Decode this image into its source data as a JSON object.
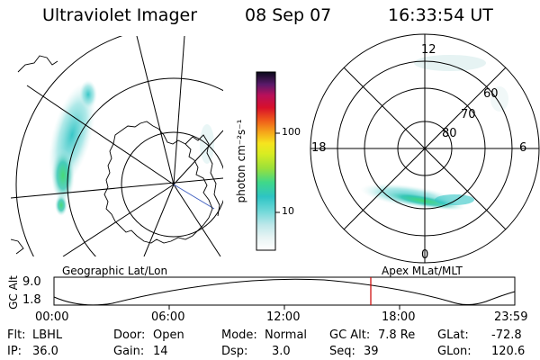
{
  "header": {
    "instrument": "Ultraviolet Imager",
    "date": "08 Sep 07",
    "time": "16:33:54 UT"
  },
  "geo_panel": {
    "label": "Geographic Lat/Lon"
  },
  "mag_panel": {
    "label": "Apex MLat/MLT",
    "mlt_labels": {
      "top": "12",
      "left": "18",
      "right": "6",
      "bottom": "0"
    },
    "lat_labels": [
      "60",
      "70",
      "80"
    ]
  },
  "colorbar": {
    "unit": "photon cm⁻²s⁻¹",
    "ticks": [
      "100",
      "10"
    ],
    "scale": "log",
    "colors": [
      "#eef6f6",
      "#bfe8ea",
      "#6fd8d8",
      "#2ec4c4",
      "#3fd88a",
      "#9be03a",
      "#d8ec22",
      "#f6e41e",
      "#f6a81a",
      "#ef5a1a",
      "#d8102a",
      "#b8105a",
      "#6a1a7a",
      "#2a1040",
      "#0a0a1a"
    ]
  },
  "altitude_plot": {
    "ylabel": "GC Alt",
    "yticks": [
      "9.0",
      "1.8"
    ],
    "xticks": [
      "00:00",
      "06:00",
      "12:00",
      "18:00",
      "23:59"
    ],
    "current_time_marker": "16:33:54",
    "marker_color": "#cc0000"
  },
  "status": {
    "flt": {
      "label": "Flt:",
      "value": "LBHL"
    },
    "ip": {
      "label": "IP:",
      "value": "36.0"
    },
    "door": {
      "label": "Door:",
      "value": "Open"
    },
    "gain": {
      "label": "Gain:",
      "value": "14"
    },
    "mode": {
      "label": "Mode:",
      "value": "Normal"
    },
    "dsp": {
      "label": "Dsp:",
      "value": "3.0"
    },
    "gcalt": {
      "label": "GC Alt:",
      "value": "7.8 Re"
    },
    "seq": {
      "label": "Seq:",
      "value": "39"
    },
    "glat": {
      "label": "GLat:",
      "value": "-72.8"
    },
    "glon": {
      "label": "GLon:",
      "value": "120.6"
    }
  }
}
